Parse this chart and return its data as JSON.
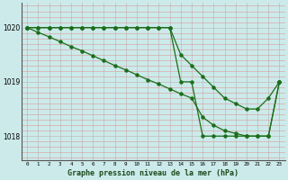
{
  "line1": [
    1020,
    1020,
    1020,
    1020,
    1020,
    1020,
    1020,
    1020,
    1020,
    1020,
    1020,
    1020,
    1020,
    1020,
    1019,
    1019,
    1018,
    1018,
    1018,
    1018,
    1018,
    1018,
    1018,
    1019
  ],
  "line2": [
    1020,
    1020,
    1020,
    1020,
    1020,
    1020,
    1020,
    1020,
    1020,
    1020,
    1020,
    1020,
    1020,
    1020,
    1019.5,
    1019.3,
    1019.1,
    1018.9,
    1018.7,
    1018.6,
    1018.5,
    1018.5,
    1018.7,
    1019.0
  ],
  "line3": [
    1020.0,
    1019.91,
    1019.83,
    1019.74,
    1019.65,
    1019.57,
    1019.48,
    1019.39,
    1019.3,
    1019.22,
    1019.13,
    1019.04,
    1018.96,
    1018.87,
    1018.78,
    1018.7,
    1018.35,
    1018.2,
    1018.1,
    1018.05,
    1018.0,
    1018.0,
    1018.0,
    1019.0
  ],
  "x": [
    0,
    1,
    2,
    3,
    4,
    5,
    6,
    7,
    8,
    9,
    10,
    11,
    12,
    13,
    14,
    15,
    16,
    17,
    18,
    19,
    20,
    21,
    22,
    23
  ],
  "line_color": "#1a6e1a",
  "bg_color": "#cceaea",
  "grid_color_minor": "#cc9999",
  "grid_color_major": "#aaaaaa",
  "xlabel": "Graphe pression niveau de la mer (hPa)",
  "ylim_min": 1017.55,
  "ylim_max": 1020.45,
  "yticks": [
    1018,
    1019,
    1020
  ],
  "xtick_labels": [
    "0",
    "1",
    "2",
    "3",
    "4",
    "5",
    "6",
    "7",
    "8",
    "9",
    "10",
    "11",
    "12",
    "13",
    "14",
    "15",
    "16",
    "17",
    "18",
    "19",
    "20",
    "21",
    "22",
    "23"
  ]
}
